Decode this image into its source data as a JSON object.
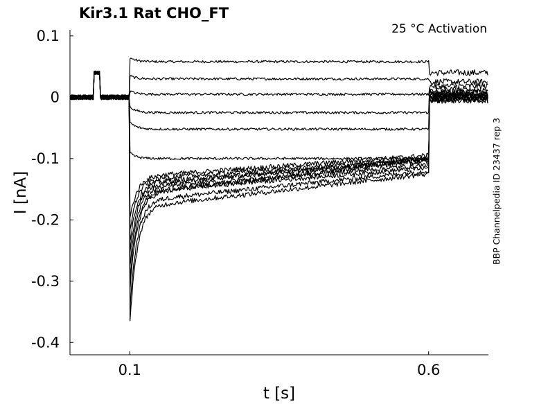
{
  "chart_data": {
    "type": "line",
    "title": "Kir3.1  Rat  CHO_FT",
    "annotation": "25 °C  Activation",
    "side_label": "BBP Channelpedia ID 23437 rep 3",
    "xlabel": "t [s]",
    "ylabel": "I [nA]",
    "xlim": [
      0.0,
      0.7
    ],
    "ylim": [
      -0.42,
      0.11
    ],
    "xticks": [
      0.1,
      0.6
    ],
    "xtick_labels": [
      "0.1",
      "0.6"
    ],
    "yticks": [
      0.1,
      0,
      -0.1,
      -0.2,
      -0.3,
      -0.4
    ],
    "ytick_labels": [
      "0.1",
      "0",
      "-0.1",
      "-0.2",
      "-0.3",
      "-0.4"
    ],
    "grid": false,
    "legend": "none",
    "pulse": {
      "start": 0.1,
      "end": 0.6
    },
    "prepulse_blip": {
      "start": 0.04,
      "end": 0.05,
      "value": 0.04
    },
    "baseline": 0.0,
    "series": [
      {
        "peak": 0.065,
        "steady": 0.058,
        "end": 0.058,
        "tail": 0.04
      },
      {
        "peak": 0.035,
        "steady": 0.03,
        "end": 0.03,
        "tail": 0.025
      },
      {
        "peak": 0.01,
        "steady": 0.005,
        "end": 0.005,
        "tail": 0.018
      },
      {
        "peak": -0.015,
        "steady": -0.025,
        "end": -0.025,
        "tail": 0.012
      },
      {
        "peak": -0.04,
        "steady": -0.052,
        "end": -0.052,
        "tail": 0.008
      },
      {
        "peak": -0.09,
        "steady": -0.1,
        "end": -0.09,
        "tail": 0.004
      },
      {
        "peak": -0.2,
        "steady": -0.13,
        "end": -0.095,
        "tail": 0.0
      },
      {
        "peak": -0.22,
        "steady": -0.135,
        "end": -0.1,
        "tail": -0.003
      },
      {
        "peak": -0.24,
        "steady": -0.14,
        "end": -0.105,
        "tail": -0.005
      },
      {
        "peak": -0.26,
        "steady": -0.145,
        "end": -0.1,
        "tail": 0.0
      },
      {
        "peak": -0.28,
        "steady": -0.15,
        "end": -0.11,
        "tail": 0.004
      },
      {
        "peak": -0.3,
        "steady": -0.155,
        "end": -0.115,
        "tail": 0.0
      },
      {
        "peak": -0.32,
        "steady": -0.16,
        "end": -0.1,
        "tail": -0.004
      },
      {
        "peak": -0.35,
        "steady": -0.17,
        "end": -0.12,
        "tail": 0.006
      },
      {
        "peak": -0.375,
        "steady": -0.18,
        "end": -0.125,
        "tail": 0.003
      }
    ]
  }
}
